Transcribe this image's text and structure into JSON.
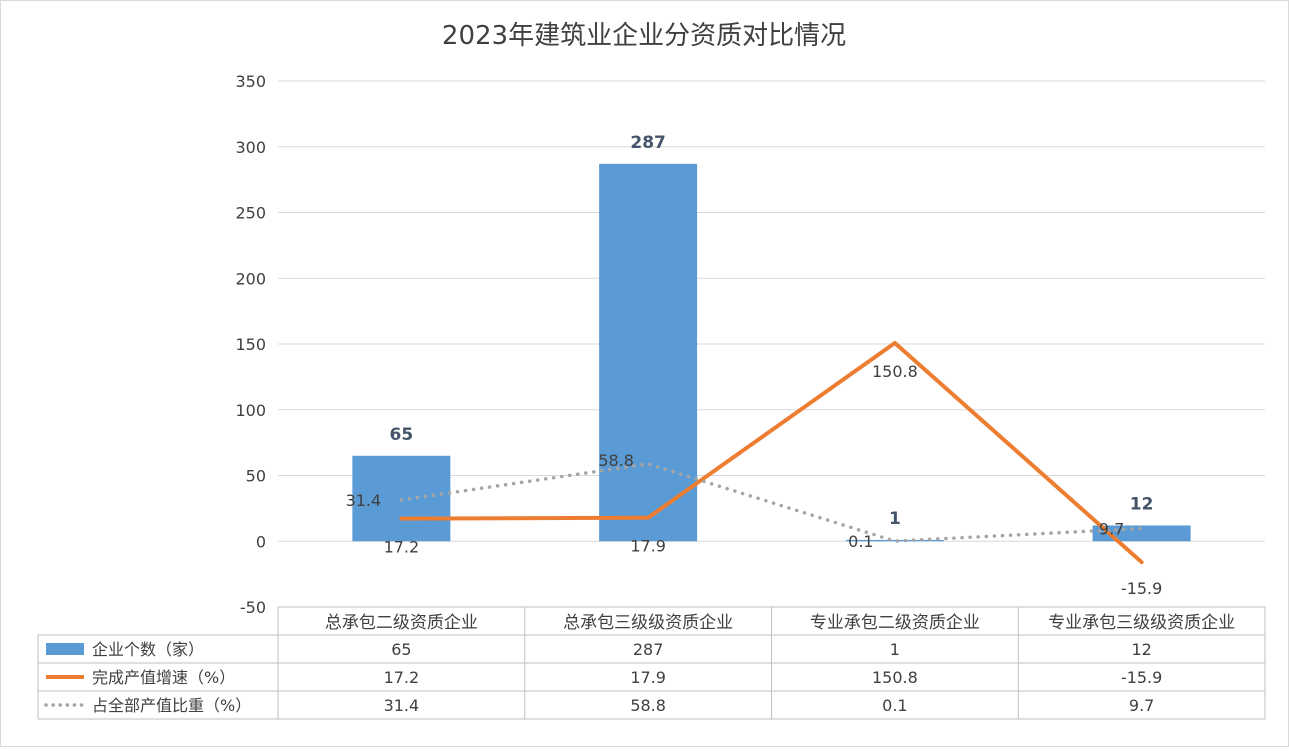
{
  "chart_data": {
    "type": "bar",
    "title": "2023年建筑业企业分资质对比情况",
    "categories": [
      "总承包二级资质企业",
      "总承包三级级资质企业",
      "专业承包二级资质企业",
      "专业承包三级级资质企业"
    ],
    "ylim": [
      -50,
      350
    ],
    "yticks": [
      "-50",
      "0",
      "50",
      "100",
      "150",
      "200",
      "250",
      "300",
      "350"
    ],
    "grid": true,
    "legend": "data-table-left",
    "series": [
      {
        "name": "企业个数（家）",
        "type": "bar",
        "color": "#5B9BD5",
        "values": [
          65,
          287,
          1,
          12
        ],
        "labels": [
          "65",
          "287",
          "1",
          "12"
        ]
      },
      {
        "name": "完成产值增速（%）",
        "type": "line",
        "color": "#ED7D31",
        "values": [
          17.2,
          17.9,
          150.8,
          -15.9
        ],
        "labels": [
          "17.2",
          "17.9",
          "150.8",
          "-15.9"
        ]
      },
      {
        "name": "占全部产值比重（%）",
        "type": "line-dotted",
        "color": "#A5A5A5",
        "values": [
          31.4,
          58.8,
          0.1,
          9.7
        ],
        "labels": [
          "31.4",
          "58.8",
          "0.1",
          "9.7"
        ]
      }
    ]
  }
}
